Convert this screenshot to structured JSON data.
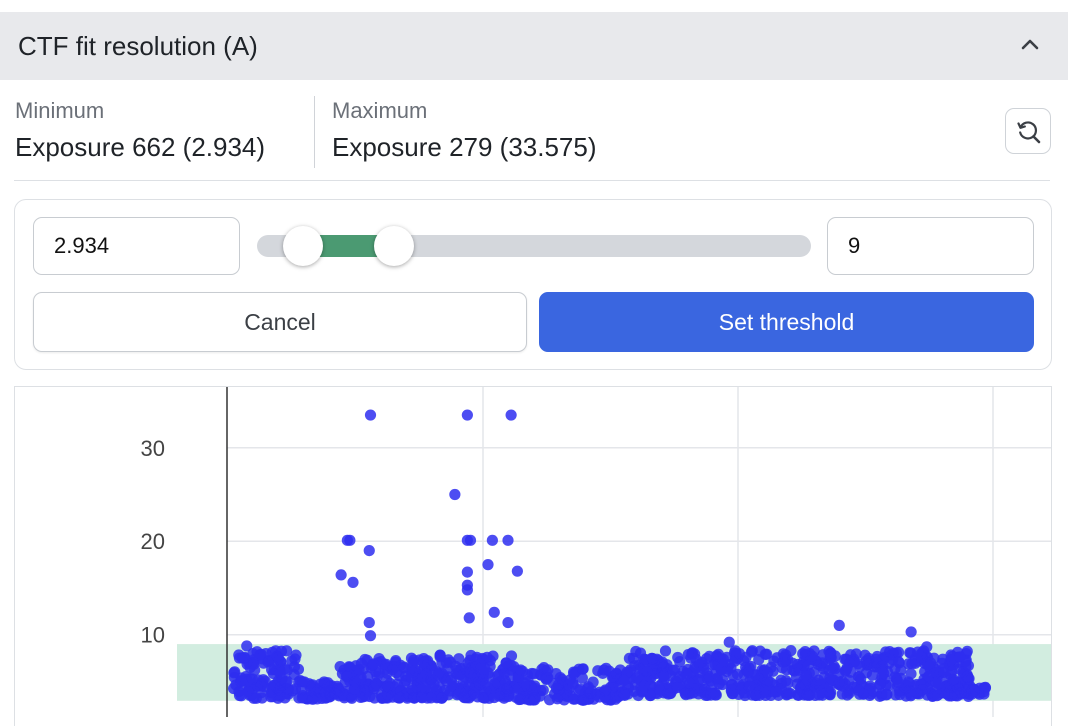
{
  "header": {
    "title": "CTF fit resolution (A)",
    "collapse_icon": "chevron-up-icon"
  },
  "stats": {
    "minimum": {
      "label": "Minimum",
      "value": "Exposure 662 (2.934)"
    },
    "maximum": {
      "label": "Maximum",
      "value": "Exposure 279 (33.575)"
    },
    "reset_icon": "zoom-reset-icon"
  },
  "threshold": {
    "low_value": "2.934",
    "high_value": "9",
    "range_min": 2.934,
    "range_max": 33.575,
    "cancel_label": "Cancel",
    "set_label": "Set threshold",
    "fill_color": "#4b9a72"
  },
  "chart_data": {
    "type": "scatter",
    "y_ticks": [
      "10",
      "20",
      "30"
    ],
    "ylim": [
      1.2,
      36.5
    ],
    "xlim": [
      0,
      1600
    ],
    "grid": true,
    "marker_color": "#2e2ef0",
    "band": {
      "low": 2.934,
      "high": 9,
      "color": "#d2ede0"
    },
    "outliers": [
      {
        "x": 220,
        "y": 33.5
      },
      {
        "x": 375,
        "y": 33.5
      },
      {
        "x": 445,
        "y": 33.5
      },
      {
        "x": 355,
        "y": 25.0
      },
      {
        "x": 183,
        "y": 20.1
      },
      {
        "x": 187,
        "y": 20.1
      },
      {
        "x": 375,
        "y": 20.1
      },
      {
        "x": 380,
        "y": 20.1
      },
      {
        "x": 415,
        "y": 20.1
      },
      {
        "x": 440,
        "y": 20.1
      },
      {
        "x": 218,
        "y": 19.0
      },
      {
        "x": 375,
        "y": 16.7
      },
      {
        "x": 408,
        "y": 17.5
      },
      {
        "x": 455,
        "y": 16.8
      },
      {
        "x": 173,
        "y": 16.4
      },
      {
        "x": 192,
        "y": 15.6
      },
      {
        "x": 375,
        "y": 15.3
      },
      {
        "x": 375,
        "y": 14.8
      },
      {
        "x": 418,
        "y": 12.4
      },
      {
        "x": 378,
        "y": 11.8
      },
      {
        "x": 440,
        "y": 11.3
      },
      {
        "x": 218,
        "y": 11.3
      },
      {
        "x": 220,
        "y": 9.9
      },
      {
        "x": 970,
        "y": 11.0
      },
      {
        "x": 1085,
        "y": 10.3
      },
      {
        "x": 794,
        "y": 9.2
      },
      {
        "x": 22,
        "y": 8.8
      },
      {
        "x": 1110,
        "y": 8.7
      }
    ],
    "clusters": [
      {
        "x_start": 0,
        "x_end": 108,
        "y_min": 3.2,
        "y_max": 8.3,
        "count": 120
      },
      {
        "x_start": 108,
        "x_end": 168,
        "y_min": 3.1,
        "y_max": 5.0,
        "count": 55
      },
      {
        "x_start": 168,
        "x_end": 300,
        "y_min": 3.2,
        "y_max": 7.5,
        "count": 150
      },
      {
        "x_start": 300,
        "x_end": 450,
        "y_min": 3.2,
        "y_max": 8.0,
        "count": 190
      },
      {
        "x_start": 450,
        "x_end": 625,
        "y_min": 3.0,
        "y_max": 6.5,
        "count": 160
      },
      {
        "x_start": 625,
        "x_end": 1025,
        "y_min": 3.5,
        "y_max": 8.3,
        "count": 420
      },
      {
        "x_start": 1025,
        "x_end": 1180,
        "y_min": 3.4,
        "y_max": 8.3,
        "count": 190
      },
      {
        "x_start": 1180,
        "x_end": 1205,
        "y_min": 3.6,
        "y_max": 4.4,
        "count": 14
      }
    ]
  }
}
